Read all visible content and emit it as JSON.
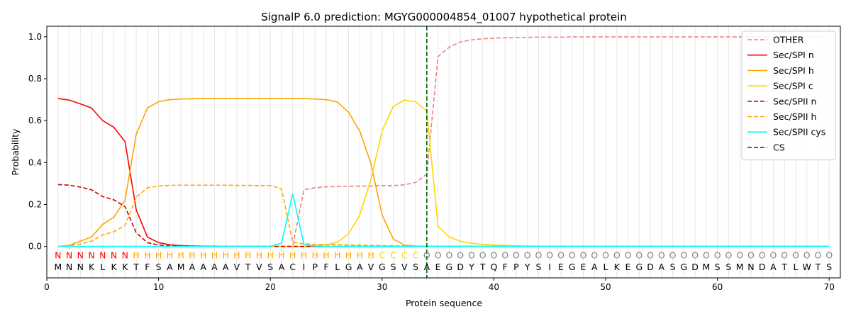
{
  "chart_data": {
    "type": "line",
    "title": "SignalP 6.0 prediction: MGYG000004854_01007 hypothetical protein",
    "xlabel": "Protein sequence",
    "ylabel": "Probability",
    "xlim": [
      0,
      71
    ],
    "ylim": [
      -0.15,
      1.05
    ],
    "x_ticks": [
      0,
      10,
      20,
      30,
      40,
      50,
      60,
      70
    ],
    "y_ticks": [
      0.0,
      0.2,
      0.4,
      0.6,
      0.8,
      1.0
    ],
    "x_tick_labels": [
      "0",
      "10",
      "20",
      "30",
      "40",
      "50",
      "60",
      "70"
    ],
    "y_tick_labels": [
      "0.0",
      "0.2",
      "0.4",
      "0.6",
      "0.8",
      "1.0"
    ],
    "grid": "vertical",
    "legend_position": "top-right",
    "sequence": "MNNKLKKTFSAMAAAAVTVSACIPFLGAVGSVSAEGDYTQFPYSIEGEALKEGDASGDMSSMNDATLWTS",
    "region_labels": "NNNNNNNHHHHHHHHHHHHHHHHHHHHHHCCCCOOOOOOOOOOOOOOOOOOOOOOOOOOOOOOOOOOOOO",
    "region_colors": {
      "N": "#ff0000",
      "H": "#ffa500",
      "C": "#ffd700",
      "O": "#808080"
    },
    "cleavage_site": 34,
    "series": [
      {
        "name": "OTHER",
        "color": "#f08080",
        "dash": "dashed",
        "values": [
          0.0,
          0.0,
          0.0,
          0.0,
          0.0,
          0.0,
          0.0,
          0.0,
          0.0,
          0.0,
          0.0,
          0.0,
          0.0,
          0.0,
          0.0,
          0.0,
          0.0,
          0.0,
          0.0,
          0.0,
          0.0,
          0.0,
          0.27,
          0.28,
          0.284,
          0.286,
          0.287,
          0.288,
          0.288,
          0.29,
          0.29,
          0.294,
          0.305,
          0.345,
          0.905,
          0.95,
          0.975,
          0.985,
          0.99,
          0.993,
          0.995,
          0.996,
          0.997,
          0.998,
          0.998,
          0.998,
          0.999,
          0.999,
          0.999,
          0.999,
          0.999,
          0.999,
          0.999,
          0.999,
          0.999,
          0.999,
          0.999,
          0.999,
          0.999,
          0.999,
          0.999,
          0.999,
          0.999,
          0.999,
          0.999,
          0.999,
          0.999,
          0.999,
          0.999,
          0.999
        ]
      },
      {
        "name": "Sec/SPI n",
        "color": "#ff0000",
        "dash": "solid",
        "values": [
          0.705,
          0.698,
          0.68,
          0.66,
          0.6,
          0.568,
          0.5,
          0.175,
          0.045,
          0.018,
          0.008,
          0.004,
          0.002,
          0.001,
          0.001,
          0.0,
          0.0,
          0.0,
          0.0,
          0.0,
          0.0,
          0.0,
          0.0,
          0.0,
          0.0,
          0.0,
          0.0,
          0.0,
          0.0,
          0.0,
          0.0,
          0.0,
          0.0,
          0.0,
          0.0,
          0.0,
          0.0,
          0.0,
          0.0,
          0.0,
          0.0,
          0.0,
          0.0,
          0.0,
          0.0,
          0.0,
          0.0,
          0.0,
          0.0,
          0.0,
          0.0,
          0.0,
          0.0,
          0.0,
          0.0,
          0.0,
          0.0,
          0.0,
          0.0,
          0.0,
          0.0,
          0.0,
          0.0,
          0.0,
          0.0,
          0.0,
          0.0,
          0.0,
          0.0,
          0.0
        ]
      },
      {
        "name": "Sec/SPI h",
        "color": "#ffa500",
        "dash": "solid",
        "values": [
          0.0,
          0.005,
          0.025,
          0.045,
          0.105,
          0.14,
          0.22,
          0.535,
          0.66,
          0.69,
          0.7,
          0.703,
          0.704,
          0.705,
          0.705,
          0.705,
          0.705,
          0.705,
          0.705,
          0.705,
          0.705,
          0.705,
          0.705,
          0.703,
          0.7,
          0.688,
          0.64,
          0.55,
          0.395,
          0.15,
          0.035,
          0.006,
          0.002,
          0.001,
          0.0,
          0.0,
          0.0,
          0.0,
          0.0,
          0.0,
          0.0,
          0.0,
          0.0,
          0.0,
          0.0,
          0.0,
          0.0,
          0.0,
          0.0,
          0.0,
          0.0,
          0.0,
          0.0,
          0.0,
          0.0,
          0.0,
          0.0,
          0.0,
          0.0,
          0.0,
          0.0,
          0.0,
          0.0,
          0.0,
          0.0,
          0.0,
          0.0,
          0.0,
          0.0,
          0.0
        ]
      },
      {
        "name": "Sec/SPI c",
        "color": "#ffd700",
        "dash": "solid",
        "values": [
          0.0,
          0.0,
          0.0,
          0.0,
          0.0,
          0.0,
          0.0,
          0.0,
          0.0,
          0.0,
          0.0,
          0.0,
          0.0,
          0.0,
          0.0,
          0.0,
          0.0,
          0.0,
          0.0,
          0.0,
          0.0,
          0.0,
          0.001,
          0.003,
          0.008,
          0.02,
          0.06,
          0.15,
          0.32,
          0.55,
          0.668,
          0.698,
          0.69,
          0.645,
          0.095,
          0.045,
          0.025,
          0.015,
          0.01,
          0.007,
          0.005,
          0.003,
          0.002,
          0.001,
          0.001,
          0.0,
          0.0,
          0.0,
          0.0,
          0.0,
          0.0,
          0.0,
          0.0,
          0.0,
          0.0,
          0.0,
          0.0,
          0.0,
          0.0,
          0.0,
          0.0,
          0.0,
          0.0,
          0.0,
          0.0,
          0.0,
          0.0,
          0.0,
          0.0,
          0.0
        ]
      },
      {
        "name": "Sec/SPII n",
        "color": "#cc0000",
        "dash": "dashed",
        "values": [
          0.295,
          0.292,
          0.283,
          0.27,
          0.238,
          0.222,
          0.19,
          0.065,
          0.018,
          0.007,
          0.003,
          0.002,
          0.001,
          0.0,
          0.0,
          0.0,
          0.0,
          0.0,
          0.0,
          0.0,
          0.0,
          0.0,
          0.0,
          0.0,
          0.0,
          0.0,
          0.0,
          0.0,
          0.0,
          0.0,
          0.0,
          0.0,
          0.0,
          0.0,
          0.0,
          0.0,
          0.0,
          0.0,
          0.0,
          0.0,
          0.0,
          0.0,
          0.0,
          0.0,
          0.0,
          0.0,
          0.0,
          0.0,
          0.0,
          0.0,
          0.0,
          0.0,
          0.0,
          0.0,
          0.0,
          0.0,
          0.0,
          0.0,
          0.0,
          0.0,
          0.0,
          0.0,
          0.0,
          0.0,
          0.0,
          0.0,
          0.0,
          0.0,
          0.0,
          0.0
        ]
      },
      {
        "name": "Sec/SPII h",
        "color": "#ffa500",
        "dash": "dashed",
        "values": [
          0.0,
          0.003,
          0.012,
          0.025,
          0.055,
          0.07,
          0.1,
          0.235,
          0.28,
          0.288,
          0.291,
          0.292,
          0.292,
          0.292,
          0.292,
          0.292,
          0.291,
          0.291,
          0.29,
          0.29,
          0.275,
          0.02,
          0.012,
          0.01,
          0.009,
          0.008,
          0.007,
          0.006,
          0.005,
          0.004,
          0.003,
          0.002,
          0.001,
          0.001,
          0.0,
          0.0,
          0.0,
          0.0,
          0.0,
          0.0,
          0.0,
          0.0,
          0.0,
          0.0,
          0.0,
          0.0,
          0.0,
          0.0,
          0.0,
          0.0,
          0.0,
          0.0,
          0.0,
          0.0,
          0.0,
          0.0,
          0.0,
          0.0,
          0.0,
          0.0,
          0.0,
          0.0,
          0.0,
          0.0,
          0.0,
          0.0,
          0.0,
          0.0,
          0.0,
          0.0
        ]
      },
      {
        "name": "Sec/SPII cys",
        "color": "#00ffff",
        "dash": "solid",
        "values": [
          0.0,
          0.0,
          0.0,
          0.0,
          0.0,
          0.0,
          0.0,
          0.0,
          0.0,
          0.0,
          0.0,
          0.0,
          0.0,
          0.0,
          0.0,
          0.0,
          0.0,
          0.0,
          0.0,
          0.0,
          0.015,
          0.252,
          0.01,
          0.002,
          0.0,
          0.0,
          0.0,
          0.0,
          0.0,
          0.0,
          0.0,
          0.0,
          0.0,
          0.0,
          0.0,
          0.0,
          0.0,
          0.0,
          0.0,
          0.0,
          0.0,
          0.0,
          0.0,
          0.0,
          0.0,
          0.0,
          0.0,
          0.0,
          0.0,
          0.0,
          0.0,
          0.0,
          0.0,
          0.0,
          0.0,
          0.0,
          0.0,
          0.0,
          0.0,
          0.0,
          0.0,
          0.0,
          0.0,
          0.0,
          0.0,
          0.0,
          0.0,
          0.0,
          0.0,
          0.0
        ]
      }
    ],
    "cs_legend": {
      "name": "CS",
      "color": "#006400",
      "dash": "dashed"
    }
  }
}
